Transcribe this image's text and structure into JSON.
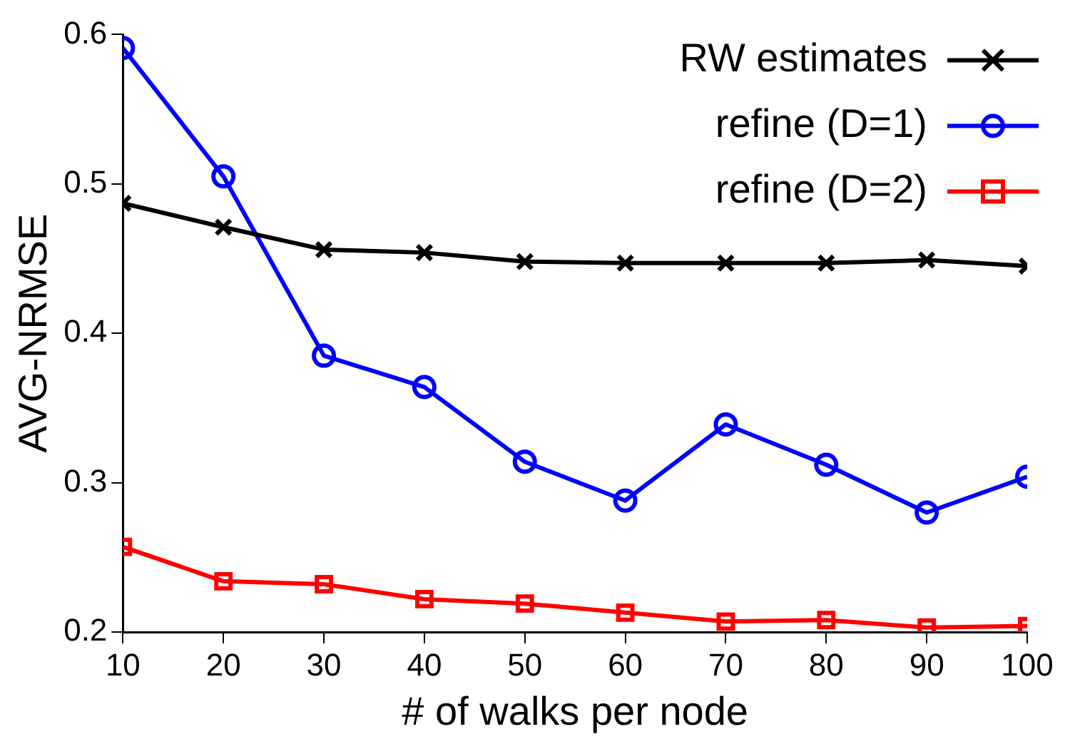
{
  "chart_data": {
    "type": "line",
    "xlabel": "# of walks per node",
    "ylabel": "AVG-NRMSE",
    "x": [
      10,
      20,
      30,
      40,
      50,
      60,
      70,
      80,
      90,
      100
    ],
    "series": [
      {
        "name": "RW estimates",
        "color": "#000000",
        "marker": "cross",
        "values": [
          0.487,
          0.471,
          0.456,
          0.454,
          0.448,
          0.447,
          0.447,
          0.447,
          0.449,
          0.445
        ]
      },
      {
        "name": "refine (D=1)",
        "color": "#0000ff",
        "marker": "circle",
        "values": [
          0.591,
          0.505,
          0.385,
          0.364,
          0.314,
          0.288,
          0.339,
          0.312,
          0.28,
          0.304
        ]
      },
      {
        "name": "refine (D=2)",
        "color": "#ff0000",
        "marker": "square",
        "values": [
          0.257,
          0.234,
          0.232,
          0.222,
          0.219,
          0.213,
          0.207,
          0.208,
          0.203,
          0.204
        ]
      }
    ],
    "xlim": [
      10,
      100
    ],
    "xticks": [
      10,
      20,
      30,
      40,
      50,
      60,
      70,
      80,
      90,
      100
    ],
    "ylim": [
      0.2,
      0.6
    ],
    "yticks": [
      0.2,
      0.3,
      0.4,
      0.5,
      0.6
    ],
    "grid": false,
    "legend": "top right",
    "line_style": "solid"
  }
}
